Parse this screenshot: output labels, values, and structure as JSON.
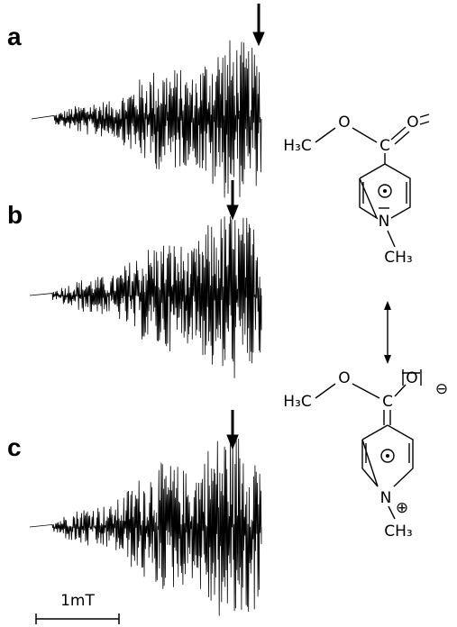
{
  "panels": [
    {
      "label": "a"
    },
    {
      "label": "b"
    },
    {
      "label": "c"
    }
  ],
  "scale_bar": "1mT",
  "structure_top": {
    "atoms": [
      "H₃C",
      "O",
      "C",
      "O",
      "N",
      "CH₃"
    ]
  },
  "structure_bottom": {
    "atoms": [
      "H₃C",
      "O",
      "C",
      "O",
      "⊖",
      "N",
      "⊕",
      "CH₃"
    ]
  }
}
